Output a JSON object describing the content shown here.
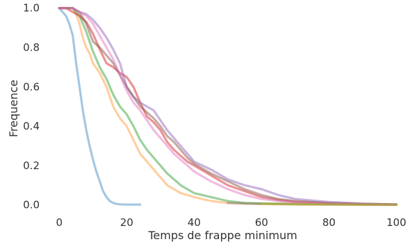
{
  "chart_data": {
    "type": "line",
    "title": "",
    "xlabel": "Temps de frappe minimum",
    "ylabel": "Frequence",
    "xlim": [
      -5,
      102
    ],
    "ylim": [
      -0.04,
      1.02
    ],
    "xticks": [
      0,
      20,
      40,
      60,
      80,
      100
    ],
    "yticks": [
      0.0,
      0.2,
      0.4,
      0.6,
      0.8,
      1.0
    ],
    "xtick_labels": [
      "0",
      "20",
      "40",
      "60",
      "80",
      "100"
    ],
    "ytick_labels": [
      "0.0",
      "0.2",
      "0.4",
      "0.6",
      "0.8",
      "1.0"
    ],
    "grid": false,
    "legend": "none",
    "series": [
      {
        "color": "#4c8fc4",
        "x": [
          0,
          1,
          2,
          3,
          4,
          5,
          6,
          7,
          8,
          9,
          10,
          11,
          12,
          13,
          14,
          15,
          16,
          17,
          18,
          20,
          22,
          24
        ],
        "y": [
          1.0,
          0.98,
          0.96,
          0.92,
          0.86,
          0.72,
          0.6,
          0.48,
          0.38,
          0.3,
          0.23,
          0.17,
          0.12,
          0.07,
          0.04,
          0.02,
          0.01,
          0.005,
          0.003,
          0.002,
          0.002,
          0.002
        ]
      },
      {
        "color": "#ff9f40",
        "x": [
          0,
          2,
          4,
          5,
          6,
          7,
          8,
          9,
          10,
          12,
          14,
          16,
          18,
          20,
          22,
          24,
          26,
          28,
          30,
          32,
          34,
          36,
          38,
          40,
          45,
          50,
          55,
          60,
          70,
          80,
          100
        ],
        "y": [
          1.0,
          1.0,
          1.0,
          0.97,
          0.92,
          0.85,
          0.8,
          0.77,
          0.72,
          0.67,
          0.6,
          0.5,
          0.44,
          0.4,
          0.33,
          0.26,
          0.22,
          0.18,
          0.14,
          0.1,
          0.08,
          0.06,
          0.05,
          0.04,
          0.02,
          0.01,
          0.006,
          0.004,
          0.002,
          0.001,
          0.0
        ]
      },
      {
        "color": "#3aa33a",
        "x": [
          0,
          2,
          4,
          6,
          8,
          10,
          12,
          14,
          16,
          18,
          20,
          22,
          24,
          26,
          28,
          30,
          32,
          34,
          36,
          38,
          40,
          45,
          50,
          55,
          60,
          70,
          80,
          100
        ],
        "y": [
          1.0,
          1.0,
          1.0,
          0.96,
          0.88,
          0.78,
          0.7,
          0.64,
          0.56,
          0.5,
          0.46,
          0.4,
          0.33,
          0.28,
          0.24,
          0.2,
          0.16,
          0.13,
          0.1,
          0.08,
          0.06,
          0.04,
          0.02,
          0.01,
          0.008,
          0.005,
          0.003,
          0.002
        ]
      },
      {
        "color": "#d62728",
        "x": [
          0,
          2,
          4,
          6,
          8,
          10,
          12,
          14,
          16,
          18,
          20,
          22,
          24,
          26,
          28,
          30,
          32,
          34,
          36,
          38,
          40,
          45,
          50,
          55,
          60,
          65,
          70,
          80,
          90,
          100
        ],
        "y": [
          1.0,
          1.0,
          0.98,
          0.96,
          0.93,
          0.87,
          0.79,
          0.72,
          0.7,
          0.67,
          0.65,
          0.6,
          0.52,
          0.45,
          0.42,
          0.38,
          0.32,
          0.28,
          0.25,
          0.22,
          0.2,
          0.15,
          0.1,
          0.07,
          0.04,
          0.025,
          0.015,
          0.008,
          0.004,
          0.002
        ]
      },
      {
        "color": "#9467bd",
        "x": [
          0,
          2,
          4,
          6,
          8,
          10,
          12,
          14,
          16,
          18,
          20,
          22,
          24,
          26,
          28,
          30,
          32,
          34,
          36,
          38,
          40,
          45,
          50,
          55,
          60,
          65,
          70,
          80,
          90,
          100
        ],
        "y": [
          1.0,
          1.0,
          1.0,
          0.98,
          0.97,
          0.94,
          0.9,
          0.85,
          0.79,
          0.72,
          0.6,
          0.55,
          0.52,
          0.5,
          0.48,
          0.43,
          0.38,
          0.34,
          0.3,
          0.26,
          0.22,
          0.18,
          0.13,
          0.1,
          0.08,
          0.05,
          0.03,
          0.015,
          0.007,
          0.003
        ]
      },
      {
        "color": "#8c564b",
        "x": [
          0,
          2,
          4,
          6,
          8,
          10,
          12,
          14,
          16,
          18,
          20,
          22,
          24,
          26,
          28,
          30,
          32,
          34,
          36,
          38,
          40,
          45,
          50,
          55,
          60,
          65,
          70,
          80,
          90,
          100
        ],
        "y": [
          1.0,
          1.0,
          1.0,
          0.98,
          0.92,
          0.83,
          0.8,
          0.76,
          0.72,
          0.66,
          0.6,
          0.55,
          0.5,
          0.47,
          0.44,
          0.4,
          0.35,
          0.32,
          0.28,
          0.24,
          0.21,
          0.16,
          0.12,
          0.08,
          0.05,
          0.03,
          0.02,
          0.01,
          0.005,
          0.003
        ]
      },
      {
        "color": "#e377c2",
        "x": [
          0,
          2,
          4,
          6,
          8,
          10,
          12,
          14,
          16,
          18,
          20,
          22,
          24,
          26,
          28,
          30,
          32,
          34,
          36,
          38,
          40,
          45,
          50,
          55,
          60,
          65,
          70,
          80,
          90,
          100
        ],
        "y": [
          1.0,
          1.0,
          1.0,
          0.98,
          0.96,
          0.92,
          0.86,
          0.8,
          0.74,
          0.66,
          0.58,
          0.52,
          0.48,
          0.43,
          0.38,
          0.34,
          0.3,
          0.26,
          0.23,
          0.2,
          0.17,
          0.12,
          0.08,
          0.05,
          0.03,
          0.02,
          0.012,
          0.006,
          0.003,
          0.001
        ]
      },
      {
        "color": "#7f7f7f",
        "x": [
          50,
          60,
          70,
          80,
          90,
          100
        ],
        "y": [
          0.01,
          0.006,
          0.004,
          0.003,
          0.002,
          0.002
        ]
      },
      {
        "color": "#bcbd22",
        "x": [
          60,
          70,
          80,
          90,
          100
        ],
        "y": [
          0.006,
          0.004,
          0.003,
          0.002,
          0.002
        ]
      }
    ]
  }
}
